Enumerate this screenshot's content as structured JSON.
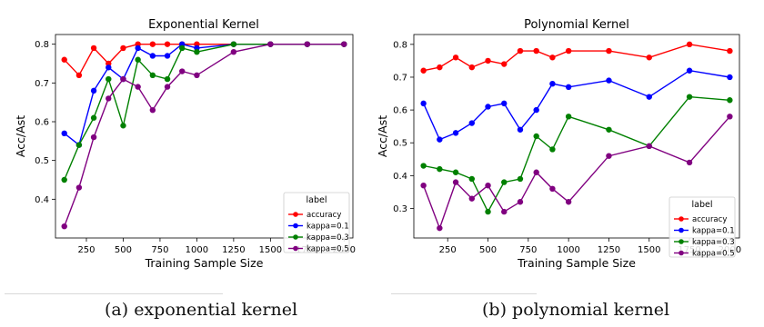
{
  "chart_data": [
    {
      "type": "line",
      "title": "Exponential Kernel",
      "xlabel": "Training Sample Size",
      "ylabel": "Acc/Ast",
      "xlim": [
        40,
        2060
      ],
      "ylim": [
        0.3,
        0.825
      ],
      "xticks": [
        250,
        500,
        750,
        1000,
        1250,
        1500,
        1750,
        2000
      ],
      "yticks": [
        0.4,
        0.5,
        0.6,
        0.7,
        0.8
      ],
      "legend": {
        "title": "label",
        "placement": "lower-right"
      },
      "grid": false,
      "x": [
        100,
        200,
        300,
        400,
        500,
        600,
        700,
        800,
        900,
        1000,
        1250,
        1500,
        1750,
        2000
      ],
      "series": [
        {
          "name": "accuracy",
          "color": "#ff0000",
          "values": [
            0.76,
            0.72,
            0.79,
            0.75,
            0.79,
            0.8,
            0.8,
            0.8,
            0.8,
            0.8,
            0.8,
            0.8,
            0.8,
            0.8
          ]
        },
        {
          "name": "kappa=0.1",
          "color": "#0000ff",
          "values": [
            0.57,
            0.54,
            0.68,
            0.74,
            0.71,
            0.79,
            0.77,
            0.77,
            0.8,
            0.79,
            0.8,
            0.8,
            0.8,
            0.8
          ]
        },
        {
          "name": "kappa=0.3",
          "color": "#008000",
          "values": [
            0.45,
            0.54,
            0.61,
            0.71,
            0.59,
            0.76,
            0.72,
            0.71,
            0.79,
            0.78,
            0.8,
            0.8,
            0.8,
            0.8
          ]
        },
        {
          "name": "kappa=0.5",
          "color": "#800080",
          "values": [
            0.33,
            0.43,
            0.56,
            0.66,
            0.71,
            0.69,
            0.63,
            0.69,
            0.73,
            0.72,
            0.78,
            0.8,
            0.8,
            0.8
          ]
        }
      ]
    },
    {
      "type": "line",
      "title": "Polynomial Kernel",
      "xlabel": "Training Sample Size",
      "ylabel": "Acc/Ast",
      "xlim": [
        40,
        2060
      ],
      "ylim": [
        0.21,
        0.83
      ],
      "xticks": [
        250,
        500,
        750,
        1000,
        1250,
        1500,
        1750,
        2000
      ],
      "yticks": [
        0.3,
        0.4,
        0.5,
        0.6,
        0.7,
        0.8
      ],
      "legend": {
        "title": "label",
        "placement": "lower-right"
      },
      "grid": false,
      "x": [
        100,
        200,
        300,
        400,
        500,
        600,
        700,
        800,
        900,
        1000,
        1250,
        1500,
        1750,
        2000
      ],
      "series": [
        {
          "name": "accuracy",
          "color": "#ff0000",
          "values": [
            0.72,
            0.73,
            0.76,
            0.73,
            0.75,
            0.74,
            0.78,
            0.78,
            0.76,
            0.78,
            0.78,
            0.76,
            0.8,
            0.78
          ]
        },
        {
          "name": "kappa=0.1",
          "color": "#0000ff",
          "values": [
            0.62,
            0.51,
            0.53,
            0.56,
            0.61,
            0.62,
            0.54,
            0.6,
            0.68,
            0.67,
            0.69,
            0.64,
            0.72,
            0.7
          ]
        },
        {
          "name": "kappa=0.3",
          "color": "#008000",
          "values": [
            0.43,
            0.42,
            0.41,
            0.39,
            0.29,
            0.38,
            0.39,
            0.52,
            0.48,
            0.58,
            0.54,
            0.49,
            0.64,
            0.63
          ]
        },
        {
          "name": "kappa=0.5",
          "color": "#800080",
          "values": [
            0.37,
            0.24,
            0.38,
            0.33,
            0.37,
            0.29,
            0.32,
            0.41,
            0.36,
            0.32,
            0.46,
            0.49,
            0.44,
            0.58
          ]
        }
      ]
    }
  ],
  "captions": {
    "left": "(a) exponential kernel",
    "right": "(b) polynomial kernel"
  }
}
